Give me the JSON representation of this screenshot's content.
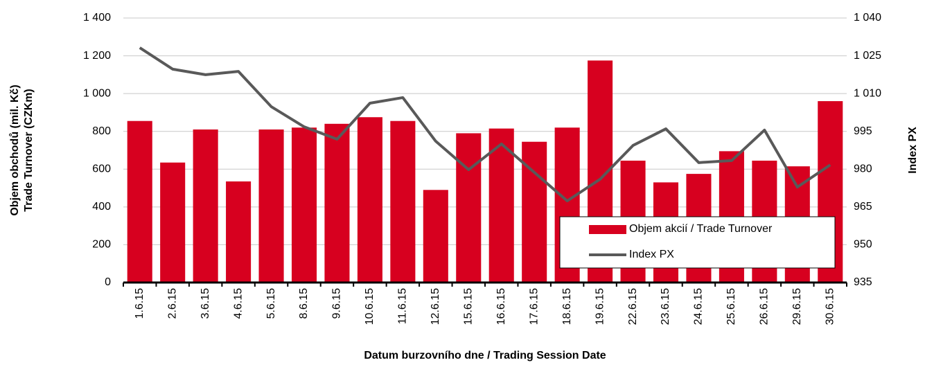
{
  "chart_data": {
    "type": "bar",
    "xlabel": "Datum burzovního dne / Trading Session Date",
    "ylabel": [
      "Objem obchodů (mil. Kč)",
      "Trade Turnover (CZKm)"
    ],
    "y2label": "Index PX",
    "categories": [
      "1.6.15",
      "2.6.15",
      "3.6.15",
      "4.6.15",
      "5.6.15",
      "8.6.15",
      "9.6.15",
      "10.6.15",
      "11.6.15",
      "12.6.15",
      "15.6.15",
      "16.6.15",
      "17.6.15",
      "18.6.15",
      "19.6.15",
      "22.6.15",
      "23.6.15",
      "24.6.15",
      "25.6.15",
      "26.6.15",
      "29.6.15",
      "30.6.15"
    ],
    "series": [
      {
        "name": "Objem akcií / Trade Turnover",
        "type": "bar",
        "color": "#d7001f",
        "values": [
          855,
          635,
          810,
          535,
          810,
          820,
          840,
          875,
          855,
          490,
          790,
          815,
          745,
          820,
          1175,
          645,
          530,
          575,
          695,
          645,
          615,
          960
        ]
      },
      {
        "name": "Index PX",
        "type": "line",
        "axis": "y2",
        "color": "#595959",
        "values": [
          1028.2,
          1019.7,
          1017.5,
          1018.8,
          1004.8,
          996.8,
          991.9,
          1006.2,
          1008.4,
          991.1,
          979.8,
          990,
          978.7,
          967.4,
          976,
          989.4,
          996,
          982.6,
          983.4,
          995.5,
          972.9,
          981.7
        ]
      }
    ],
    "ylim": [
      0,
      1400
    ],
    "yticks": [
      0,
      200,
      400,
      600,
      800,
      {
        "value": 1000,
        "label": "1 000"
      },
      {
        "value": 1200,
        "label": "1 200"
      },
      {
        "value": 1400,
        "label": "1 400"
      }
    ],
    "y2lim": [
      935,
      1040
    ],
    "y2ticks": [
      935,
      950,
      965,
      980,
      995,
      {
        "value": 1010,
        "label": "1 010"
      },
      {
        "value": 1025,
        "label": "1 025"
      },
      {
        "value": 1040,
        "label": "1 040"
      }
    ],
    "grid": true,
    "legend": "lower-right"
  }
}
